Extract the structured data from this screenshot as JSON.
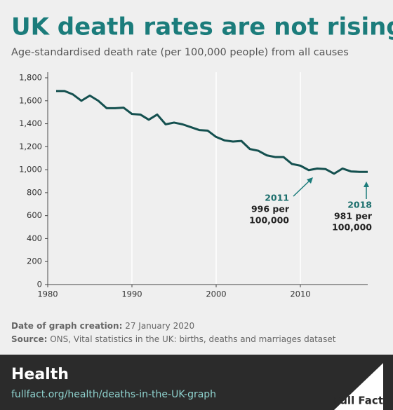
{
  "header": {
    "title": "UK death rates are not rising",
    "subtitle": "Age-standardised death rate (per 100,000 people) from all causes"
  },
  "chart_data": {
    "type": "line",
    "x": [
      1981,
      1982,
      1983,
      1984,
      1985,
      1986,
      1987,
      1988,
      1989,
      1990,
      1991,
      1992,
      1993,
      1994,
      1995,
      1996,
      1997,
      1998,
      1999,
      2000,
      2001,
      2002,
      2003,
      2004,
      2005,
      2006,
      2007,
      2008,
      2009,
      2010,
      2011,
      2012,
      2013,
      2014,
      2015,
      2016,
      2017,
      2018
    ],
    "series": [
      {
        "color": "#14504f",
        "values": [
          1685,
          1685,
          1655,
          1600,
          1645,
          1600,
          1535,
          1535,
          1540,
          1485,
          1480,
          1435,
          1480,
          1395,
          1410,
          1395,
          1370,
          1345,
          1340,
          1285,
          1255,
          1245,
          1250,
          1180,
          1165,
          1125,
          1110,
          1110,
          1050,
          1035,
          996,
          1010,
          1005,
          965,
          1010,
          985,
          981,
          981
        ]
      }
    ],
    "xlim": [
      1980,
      2018
    ],
    "xticks": [
      1980,
      1990,
      2000,
      2010
    ],
    "ylim": [
      0,
      1800
    ],
    "yticks": [
      0,
      200,
      400,
      600,
      800,
      {
        "value": 1000,
        "label": "1,000"
      },
      {
        "value": 1200,
        "label": "1,200"
      },
      {
        "value": 1400,
        "label": "1,400"
      },
      {
        "value": 1600,
        "label": "1,600"
      },
      {
        "value": 1800,
        "label": "1,800"
      }
    ],
    "grid": true,
    "annotations": [
      {
        "year": "2011",
        "lines": [
          "996 per",
          "100,000"
        ]
      },
      {
        "year": "2018",
        "lines": [
          "981 per",
          "100,000"
        ]
      }
    ]
  },
  "footer": {
    "date_label": "Date of graph creation:",
    "date": "27 January 2020",
    "source_label": "Source:",
    "source": "ONS, Vital statistics in the UK: births, deaths and marriages dataset",
    "section": "Health",
    "url": "fullfact.org/health/deaths-in-the-UK-graph",
    "logo": "Full Fact"
  }
}
